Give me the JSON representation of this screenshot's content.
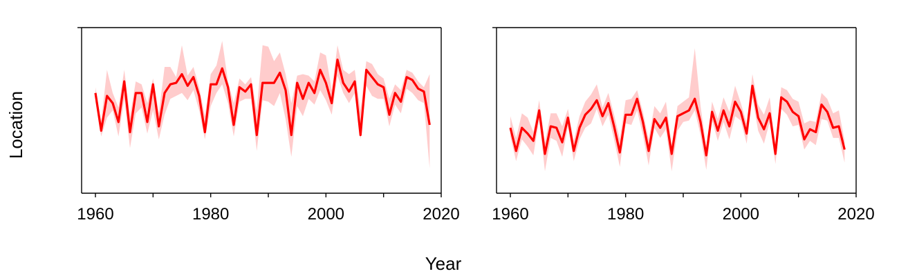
{
  "figure": {
    "ylabel": "Location",
    "xlabel": "Year"
  },
  "colors": {
    "line": "#ff0000",
    "band": "#ffcccc",
    "axis": "#000000"
  },
  "chart_data": [
    {
      "type": "line",
      "panel": "left",
      "xlim": [
        1960,
        2018
      ],
      "ylim": [
        0,
        100
      ],
      "y_ticks_labeled": false,
      "x_ticks": [
        1960,
        1980,
        2000,
        2020
      ],
      "x_tick_labels": [
        "1960",
        "1980",
        "2000",
        "2020"
      ],
      "x": [
        1960,
        1961,
        1962,
        1963,
        1964,
        1965,
        1966,
        1967,
        1968,
        1969,
        1970,
        1971,
        1972,
        1973,
        1974,
        1975,
        1976,
        1977,
        1978,
        1979,
        1980,
        1981,
        1982,
        1983,
        1984,
        1985,
        1986,
        1987,
        1988,
        1989,
        1990,
        1991,
        1992,
        1993,
        1994,
        1995,
        1996,
        1997,
        1998,
        1999,
        2000,
        2001,
        2002,
        2003,
        2004,
        2005,
        2006,
        2007,
        2008,
        2009,
        2010,
        2011,
        2012,
        2013,
        2014,
        2015,
        2016,
        2017,
        2018
      ],
      "series": [
        {
          "values": [
            62,
            36,
            60,
            55,
            42,
            70,
            35,
            62,
            62,
            42,
            68,
            39,
            62,
            68,
            69,
            75,
            67,
            73,
            60,
            35,
            68,
            68,
            79,
            66,
            40,
            66,
            63,
            68,
            33,
            69,
            69,
            69,
            76,
            64,
            33,
            69,
            58,
            69,
            62,
            78,
            69,
            55,
            85,
            69,
            63,
            70,
            33,
            78,
            73,
            68,
            66,
            47,
            62,
            56,
            73,
            71,
            65,
            63,
            40
          ],
          "lower": [
            56,
            32,
            45,
            50,
            32,
            58,
            24,
            48,
            52,
            34,
            50,
            30,
            47,
            58,
            60,
            62,
            57,
            64,
            50,
            30,
            53,
            62,
            68,
            55,
            32,
            56,
            58,
            58,
            22,
            57,
            56,
            53,
            62,
            44,
            18,
            53,
            46,
            58,
            54,
            64,
            57,
            47,
            74,
            62,
            55,
            62,
            30,
            67,
            60,
            58,
            58,
            39,
            54,
            48,
            65,
            62,
            57,
            55,
            10
          ],
          "upper": [
            66,
            42,
            78,
            62,
            52,
            78,
            46,
            70,
            68,
            55,
            72,
            48,
            80,
            80,
            73,
            95,
            74,
            80,
            66,
            46,
            75,
            81,
            98,
            70,
            55,
            72,
            68,
            73,
            50,
            95,
            94,
            84,
            90,
            75,
            55,
            74,
            75,
            74,
            70,
            90,
            88,
            64,
            95,
            78,
            75,
            78,
            50,
            84,
            82,
            75,
            72,
            58,
            68,
            64,
            78,
            76,
            70,
            66,
            75
          ]
        }
      ]
    },
    {
      "type": "line",
      "panel": "right",
      "xlim": [
        1960,
        2018
      ],
      "ylim": [
        0,
        100
      ],
      "y_ticks_labeled": false,
      "x_ticks": [
        1960,
        1980,
        2000,
        2020
      ],
      "x_tick_labels": [
        "1960",
        "1980",
        "2000",
        "2020"
      ],
      "x": [
        1960,
        1961,
        1962,
        1963,
        1964,
        1965,
        1966,
        1967,
        1968,
        1969,
        1970,
        1971,
        1972,
        1973,
        1974,
        1975,
        1976,
        1977,
        1978,
        1979,
        1980,
        1981,
        1982,
        1983,
        1984,
        1985,
        1986,
        1987,
        1988,
        1989,
        1990,
        1991,
        1992,
        1993,
        1994,
        1995,
        1996,
        1997,
        1998,
        1999,
        2000,
        2001,
        2002,
        2003,
        2004,
        2005,
        2006,
        2007,
        2008,
        2009,
        2010,
        2011,
        2012,
        2013,
        2014,
        2015,
        2016,
        2017,
        2018
      ],
      "series": [
        {
          "values": [
            38,
            22,
            38,
            34,
            29,
            50,
            20,
            39,
            38,
            28,
            45,
            22,
            38,
            47,
            51,
            57,
            46,
            55,
            39,
            21,
            47,
            47,
            58,
            42,
            22,
            44,
            38,
            45,
            20,
            46,
            48,
            50,
            58,
            42,
            19,
            49,
            36,
            50,
            39,
            56,
            49,
            34,
            67,
            45,
            37,
            48,
            20,
            59,
            56,
            49,
            46,
            30,
            37,
            35,
            54,
            49,
            38,
            39,
            23
          ]
        }
      ]
    }
  ]
}
